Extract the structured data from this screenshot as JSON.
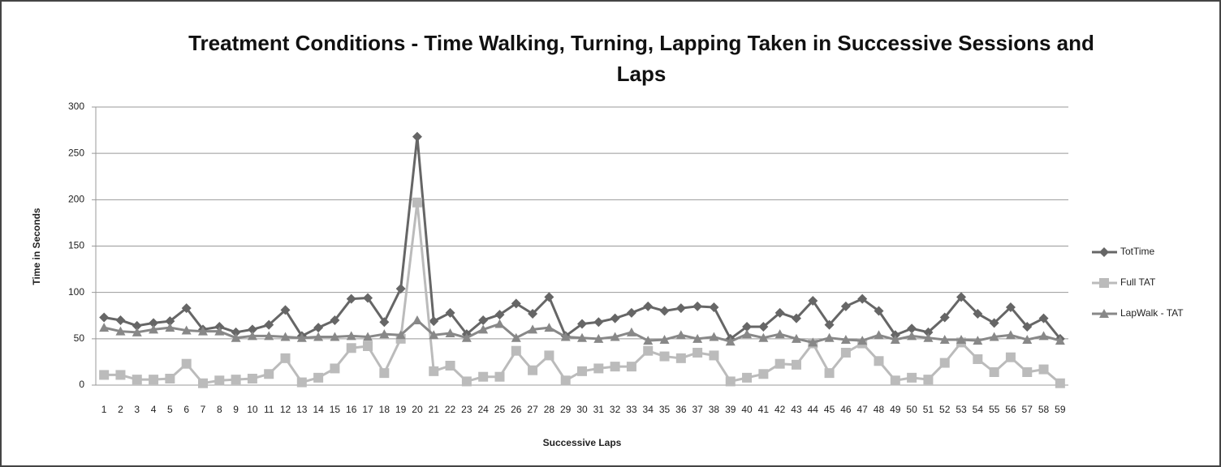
{
  "chart_data": {
    "type": "line",
    "title": "Treatment Conditions - Time Walking, Turning, Lapping Taken in Successive Sessions and Laps",
    "x_label": "Successive Laps",
    "y_label": "Time in Seconds",
    "categories": [
      "1",
      "2",
      "3",
      "4",
      "5",
      "6",
      "7",
      "8",
      "9",
      "10",
      "11",
      "12",
      "13",
      "14",
      "15",
      "16",
      "17",
      "18",
      "19",
      "20",
      "21",
      "22",
      "23",
      "24",
      "25",
      "26",
      "27",
      "28",
      "29",
      "30",
      "31",
      "32",
      "33",
      "34",
      "35",
      "36",
      "37",
      "38",
      "39",
      "40",
      "41",
      "42",
      "43",
      "44",
      "45",
      "46",
      "47",
      "48",
      "49",
      "50",
      "51",
      "52",
      "53",
      "54",
      "55",
      "56",
      "57",
      "58",
      "59"
    ],
    "series": [
      {
        "name": "TotTime",
        "color": "#666666",
        "marker": "diamond",
        "values": [
          73,
          70,
          64,
          67,
          69,
          83,
          60,
          63,
          57,
          60,
          65,
          81,
          53,
          62,
          70,
          93,
          94,
          68,
          104,
          268,
          69,
          78,
          55,
          70,
          76,
          88,
          77,
          95,
          53,
          66,
          68,
          72,
          78,
          85,
          80,
          83,
          85,
          84,
          50,
          63,
          63,
          78,
          72,
          91,
          65,
          85,
          93,
          80,
          54,
          61,
          57,
          73,
          95,
          77,
          67,
          84,
          63,
          72,
          50
        ]
      },
      {
        "name": "Full TAT",
        "color": "#bbbbbb",
        "marker": "square",
        "values": [
          11,
          11,
          6,
          6,
          7,
          23,
          2,
          5,
          6,
          7,
          12,
          29,
          3,
          8,
          18,
          40,
          42,
          13,
          50,
          197,
          15,
          21,
          4,
          9,
          9,
          37,
          16,
          32,
          5,
          15,
          18,
          20,
          20,
          37,
          31,
          29,
          35,
          32,
          4,
          8,
          12,
          23,
          22,
          45,
          13,
          35,
          45,
          26,
          5,
          8,
          6,
          24,
          46,
          28,
          14,
          30,
          14,
          17,
          2
        ]
      },
      {
        "name": "LapWalk - TAT",
        "color": "#888888",
        "marker": "triangle",
        "values": [
          62,
          58,
          57,
          60,
          62,
          59,
          58,
          58,
          51,
          53,
          53,
          52,
          51,
          52,
          52,
          53,
          52,
          55,
          54,
          70,
          54,
          56,
          51,
          60,
          66,
          51,
          60,
          62,
          52,
          51,
          50,
          52,
          57,
          48,
          49,
          54,
          50,
          52,
          47,
          55,
          51,
          55,
          50,
          46,
          51,
          49,
          48,
          54,
          49,
          53,
          51,
          49,
          49,
          48,
          52,
          54,
          49,
          53,
          48
        ]
      }
    ],
    "ylim": [
      0,
      300
    ],
    "yticks": [
      0,
      50,
      100,
      150,
      200,
      250,
      300
    ],
    "grid": true,
    "legend": "right"
  }
}
